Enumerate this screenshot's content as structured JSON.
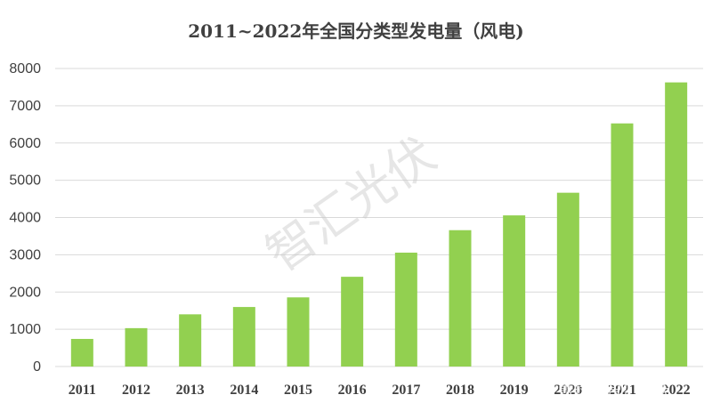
{
  "chart_data": {
    "type": "bar",
    "title": "2011~2022年全国分类型发电量（风电)",
    "categories": [
      "2011",
      "2012",
      "2013",
      "2014",
      "2015",
      "2016",
      "2017",
      "2018",
      "2019",
      "2020",
      "2021",
      "2022"
    ],
    "values": [
      741,
      1030,
      1401,
      1598,
      1856,
      2409,
      3057,
      3660,
      4057,
      4665,
      6526,
      7627
    ],
    "ylim": [
      0,
      8000
    ],
    "yticks": [
      "0",
      "1000",
      "2000",
      "3000",
      "4000",
      "5000",
      "6000",
      "7000",
      "8000"
    ],
    "bar_color": "#92d050",
    "grid": true,
    "xlabel": "",
    "ylabel": ""
  },
  "watermark": "智汇光伏",
  "footer_watermark": "雪球：智汇光伏"
}
